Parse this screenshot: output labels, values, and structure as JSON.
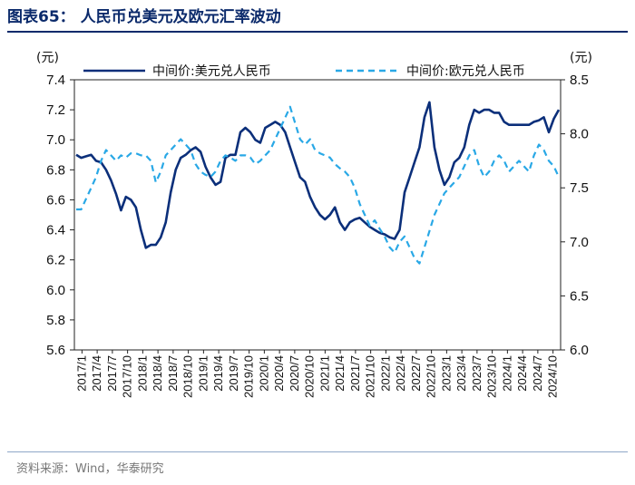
{
  "header": {
    "title": "图表65： 人民币兑美元及欧元汇率波动"
  },
  "footer": {
    "source": "资料来源：Wind，华泰研究"
  },
  "chart_data": {
    "type": "line",
    "title": "人民币兑美元及欧元汇率波动",
    "left_unit": "(元)",
    "right_unit": "(元)",
    "left_ylim": [
      5.6,
      7.4
    ],
    "left_ticks": [
      "7.4",
      "7.2",
      "7.0",
      "6.8",
      "6.6",
      "6.4",
      "6.2",
      "6.0",
      "5.8",
      "5.6"
    ],
    "right_ylim": [
      6.0,
      8.5
    ],
    "right_ticks": [
      "8.5",
      "8.0",
      "7.5",
      "7.0",
      "6.5",
      "6.0"
    ],
    "x_ticks": [
      "2017/1",
      "2017/4",
      "2017/7",
      "2017/10",
      "2018/1",
      "2018/4",
      "2018/7",
      "2018/10",
      "2019/1",
      "2019/4",
      "2019/7",
      "2019/10",
      "2020/1",
      "2020/4",
      "2020/7",
      "2020/10",
      "2021/1",
      "2021/4",
      "2021/7",
      "2021/10",
      "2022/1",
      "2022/4",
      "2022/7",
      "2022/10",
      "2023/1",
      "2023/4",
      "2023/7",
      "2023/10",
      "2024/1",
      "2024/4",
      "2024/7",
      "2024/10"
    ],
    "legend_position": "top",
    "series": [
      {
        "name": "中间价:美元兑人民币",
        "axis": "left",
        "color": "#0b2f7a",
        "style": "solid",
        "values": [
          6.9,
          6.88,
          6.89,
          6.9,
          6.86,
          6.85,
          6.8,
          6.73,
          6.64,
          6.53,
          6.62,
          6.6,
          6.55,
          6.4,
          6.28,
          6.3,
          6.3,
          6.35,
          6.45,
          6.65,
          6.8,
          6.88,
          6.9,
          6.93,
          6.95,
          6.92,
          6.82,
          6.75,
          6.7,
          6.72,
          6.88,
          6.9,
          6.9,
          7.05,
          7.08,
          7.05,
          7.0,
          6.98,
          7.08,
          7.1,
          7.12,
          7.1,
          7.05,
          6.95,
          6.85,
          6.75,
          6.72,
          6.62,
          6.55,
          6.5,
          6.47,
          6.5,
          6.55,
          6.45,
          6.4,
          6.45,
          6.47,
          6.48,
          6.45,
          6.42,
          6.4,
          6.38,
          6.37,
          6.35,
          6.34,
          6.4,
          6.65,
          6.75,
          6.85,
          6.95,
          7.15,
          7.25,
          6.95,
          6.8,
          6.7,
          6.75,
          6.85,
          6.88,
          6.95,
          7.1,
          7.2,
          7.18,
          7.2,
          7.2,
          7.18,
          7.18,
          7.12,
          7.1,
          7.1,
          7.1,
          7.1,
          7.1,
          7.12,
          7.13,
          7.15,
          7.05,
          7.14,
          7.2
        ]
      },
      {
        "name": "中间价:欧元兑人民币",
        "axis": "right",
        "color": "#29a8e6",
        "style": "dashed",
        "values": [
          7.3,
          7.3,
          7.4,
          7.5,
          7.6,
          7.75,
          7.85,
          7.8,
          7.75,
          7.8,
          7.78,
          7.82,
          7.82,
          7.8,
          7.8,
          7.75,
          7.55,
          7.65,
          7.8,
          7.85,
          7.9,
          7.95,
          7.9,
          7.85,
          7.72,
          7.65,
          7.62,
          7.6,
          7.65,
          7.75,
          7.8,
          7.78,
          7.75,
          7.8,
          7.8,
          7.78,
          7.72,
          7.75,
          7.8,
          7.85,
          7.95,
          8.05,
          8.15,
          8.25,
          8.1,
          7.95,
          7.9,
          7.95,
          7.85,
          7.82,
          7.8,
          7.78,
          7.72,
          7.68,
          7.65,
          7.6,
          7.5,
          7.35,
          7.25,
          7.15,
          7.2,
          7.12,
          7.05,
          6.95,
          6.9,
          7.0,
          7.05,
          6.95,
          6.85,
          6.8,
          6.95,
          7.1,
          7.25,
          7.35,
          7.45,
          7.5,
          7.55,
          7.6,
          7.7,
          7.8,
          7.85,
          7.7,
          7.6,
          7.65,
          7.75,
          7.8,
          7.75,
          7.65,
          7.7,
          7.75,
          7.7,
          7.65,
          7.8,
          7.9,
          7.85,
          7.75,
          7.7,
          7.6
        ]
      }
    ]
  }
}
